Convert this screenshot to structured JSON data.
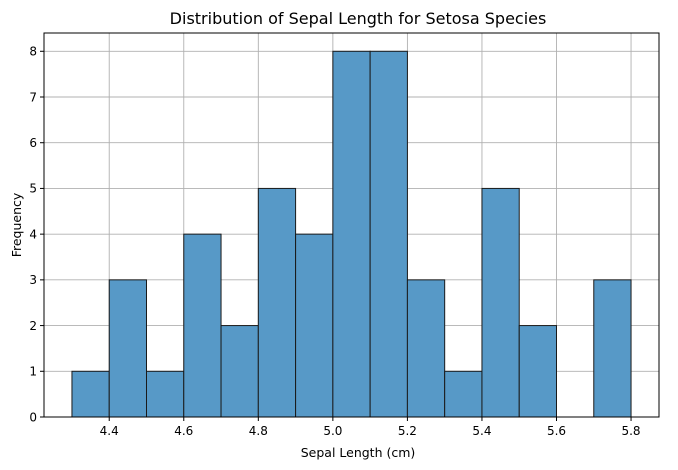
{
  "chart_data": {
    "type": "bar",
    "title": "Distribution of Sepal Length for Setosa Species",
    "xlabel": "Sepal Length (cm)",
    "ylabel": "Frequency",
    "bins": [
      {
        "start": 4.3,
        "end": 4.4,
        "count": 1
      },
      {
        "start": 4.4,
        "end": 4.5,
        "count": 3
      },
      {
        "start": 4.5,
        "end": 4.6,
        "count": 1
      },
      {
        "start": 4.6,
        "end": 4.7,
        "count": 4
      },
      {
        "start": 4.7,
        "end": 4.8,
        "count": 2
      },
      {
        "start": 4.8,
        "end": 4.9,
        "count": 5
      },
      {
        "start": 4.9,
        "end": 5.0,
        "count": 4
      },
      {
        "start": 5.0,
        "end": 5.1,
        "count": 8
      },
      {
        "start": 5.1,
        "end": 5.2,
        "count": 8
      },
      {
        "start": 5.2,
        "end": 5.3,
        "count": 3
      },
      {
        "start": 5.3,
        "end": 5.4,
        "count": 1
      },
      {
        "start": 5.4,
        "end": 5.5,
        "count": 5
      },
      {
        "start": 5.5,
        "end": 5.6,
        "count": 2
      },
      {
        "start": 5.6,
        "end": 5.7,
        "count": 0
      },
      {
        "start": 5.7,
        "end": 5.8,
        "count": 3
      }
    ],
    "xlim": [
      4.225,
      5.875
    ],
    "ylim": [
      0,
      8.4
    ],
    "xticks": [
      "4.4",
      "4.6",
      "4.8",
      "5.0",
      "5.2",
      "5.4",
      "5.6",
      "5.8"
    ],
    "yticks": [
      "0",
      "1",
      "2",
      "3",
      "4",
      "5",
      "6",
      "7",
      "8"
    ],
    "grid": true,
    "colors": {
      "bar_fill": "#5799c7",
      "bar_edge": "#1a1a1a",
      "grid": "#b0b0b0"
    }
  }
}
